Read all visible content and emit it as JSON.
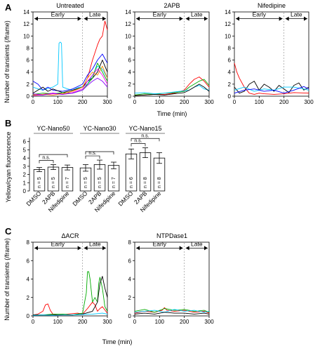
{
  "panels": {
    "A": {
      "label": "A",
      "ylabel": "Number of transients (/frame)",
      "xlabel": "Time (min)",
      "early_label": "Early",
      "late_label": "Late"
    },
    "B": {
      "label": "B",
      "ylabel": "Yellow/cyan fluorescence",
      "ns_label": "n.s."
    },
    "C": {
      "label": "C",
      "ylabel": "Number of transients (/frame)",
      "xlabel": "Time (min)",
      "early_label": "Early",
      "late_label": "Late"
    }
  },
  "chart_data": [
    {
      "id": "A-untreated",
      "type": "line",
      "title": "Untreated",
      "xlim": [
        0,
        300
      ],
      "ylim": [
        0,
        14
      ],
      "xticks": [
        0,
        100,
        200,
        300
      ],
      "yticks": [
        0,
        2,
        4,
        6,
        8,
        10,
        12,
        14
      ],
      "series": [
        {
          "color": "#00c8ff",
          "x": [
            0,
            20,
            40,
            60,
            80,
            100,
            105,
            110,
            115,
            120,
            140,
            160,
            180,
            200,
            220,
            240,
            260,
            280,
            300
          ],
          "y": [
            1.5,
            1.2,
            1.0,
            1.3,
            1.5,
            2.0,
            8.8,
            9.0,
            8.8,
            1.5,
            1.2,
            1.0,
            1.4,
            1.6,
            2.0,
            3.5,
            5.0,
            4.5,
            3.0
          ]
        },
        {
          "color": "#ff0000",
          "x": [
            0,
            40,
            80,
            120,
            160,
            200,
            220,
            240,
            260,
            270,
            280,
            290,
            300
          ],
          "y": [
            0.2,
            0.3,
            0.5,
            0.4,
            0.8,
            1.5,
            3.0,
            6.0,
            8.5,
            9.5,
            10.0,
            12.5,
            11.0
          ]
        },
        {
          "color": "#0000ff",
          "x": [
            0,
            20,
            40,
            60,
            80,
            120,
            160,
            200,
            220,
            240,
            260,
            280,
            300
          ],
          "y": [
            2.5,
            2.0,
            1.0,
            1.5,
            1.0,
            0.8,
            1.2,
            2.0,
            3.5,
            4.5,
            6.0,
            7.0,
            5.5
          ]
        },
        {
          "color": "#000000",
          "x": [
            0,
            40,
            60,
            80,
            120,
            160,
            200,
            220,
            240,
            260,
            280,
            300
          ],
          "y": [
            0.5,
            1.5,
            0.8,
            1.2,
            0.6,
            1.0,
            1.5,
            2.5,
            3.0,
            4.0,
            6.0,
            4.0
          ]
        },
        {
          "color": "#00aa00",
          "x": [
            0,
            40,
            80,
            120,
            160,
            200,
            220,
            240,
            260,
            280,
            300
          ],
          "y": [
            0.3,
            0.5,
            0.4,
            0.6,
            0.5,
            1.0,
            2.0,
            3.0,
            5.5,
            4.0,
            2.5
          ]
        },
        {
          "color": "#ff00ff",
          "x": [
            0,
            40,
            80,
            120,
            160,
            200,
            220,
            240,
            260,
            280,
            300
          ],
          "y": [
            0.1,
            0.2,
            0.4,
            0.3,
            0.6,
            1.2,
            2.5,
            3.5,
            4.5,
            3.5,
            2.0
          ]
        },
        {
          "color": "#ff8800",
          "x": [
            0,
            40,
            80,
            120,
            160,
            200,
            220,
            240,
            260,
            280,
            300
          ],
          "y": [
            0.2,
            0.3,
            0.2,
            0.4,
            0.8,
            1.5,
            3.0,
            4.0,
            3.5,
            5.0,
            3.0
          ]
        },
        {
          "color": "#8800ff",
          "x": [
            0,
            40,
            80,
            120,
            160,
            200,
            220,
            240,
            260,
            280,
            300
          ],
          "y": [
            0.4,
            0.2,
            0.5,
            0.3,
            0.5,
            1.0,
            1.8,
            2.5,
            3.0,
            2.5,
            1.5
          ]
        }
      ]
    },
    {
      "id": "A-2apb",
      "type": "line",
      "title": "2APB",
      "xlim": [
        0,
        300
      ],
      "ylim": [
        0,
        14
      ],
      "xticks": [
        0,
        100,
        200,
        300
      ],
      "yticks": [
        0,
        2,
        4,
        6,
        8,
        10,
        12,
        14
      ],
      "series": [
        {
          "color": "#ff0000",
          "x": [
            0,
            40,
            80,
            120,
            160,
            200,
            220,
            240,
            260,
            280,
            300
          ],
          "y": [
            0.1,
            0.2,
            0.3,
            0.3,
            0.5,
            1.0,
            2.0,
            2.8,
            3.2,
            2.5,
            1.5
          ]
        },
        {
          "color": "#00aa00",
          "x": [
            0,
            40,
            80,
            120,
            160,
            200,
            220,
            240,
            260,
            280,
            300
          ],
          "y": [
            0.2,
            0.4,
            0.3,
            0.5,
            0.6,
            0.8,
            1.5,
            2.0,
            2.5,
            2.8,
            1.8
          ]
        },
        {
          "color": "#00c8ff",
          "x": [
            0,
            40,
            80,
            120,
            160,
            200,
            220,
            240,
            260,
            280,
            300
          ],
          "y": [
            0.5,
            0.6,
            0.4,
            0.5,
            0.7,
            0.9,
            1.0,
            1.5,
            1.8,
            1.2,
            1.0
          ]
        },
        {
          "color": "#000000",
          "x": [
            0,
            40,
            80,
            120,
            160,
            200,
            220,
            240,
            260,
            280,
            300
          ],
          "y": [
            0.1,
            0.2,
            0.3,
            0.2,
            0.4,
            0.6,
            1.0,
            1.5,
            2.0,
            1.5,
            0.8
          ]
        }
      ]
    },
    {
      "id": "A-nifedipine",
      "type": "line",
      "title": "Nifedipine",
      "xlim": [
        0,
        300
      ],
      "ylim": [
        0,
        14
      ],
      "xticks": [
        0,
        100,
        200,
        300
      ],
      "yticks": [
        0,
        2,
        4,
        6,
        8,
        10,
        12,
        14
      ],
      "series": [
        {
          "color": "#ff0000",
          "x": [
            0,
            10,
            20,
            40,
            60,
            80,
            100,
            120,
            160,
            200,
            240,
            300
          ],
          "y": [
            5.5,
            4.0,
            3.0,
            1.5,
            0.5,
            0.3,
            0.5,
            0.4,
            0.3,
            0.4,
            0.6,
            0.5
          ]
        },
        {
          "color": "#000000",
          "x": [
            0,
            20,
            40,
            60,
            80,
            100,
            120,
            140,
            160,
            180,
            200,
            220,
            240,
            260,
            280,
            300
          ],
          "y": [
            1.5,
            0.5,
            0.8,
            2.0,
            2.5,
            1.0,
            2.0,
            1.5,
            0.8,
            1.8,
            1.2,
            0.6,
            1.8,
            2.2,
            1.0,
            1.5
          ]
        },
        {
          "color": "#00c8ff",
          "x": [
            0,
            40,
            80,
            120,
            160,
            200,
            240,
            280,
            300
          ],
          "y": [
            1.0,
            1.5,
            0.8,
            1.2,
            1.0,
            1.5,
            1.5,
            1.2,
            1.0
          ]
        },
        {
          "color": "#0000ff",
          "x": [
            0,
            40,
            80,
            120,
            160,
            200,
            240,
            280,
            300
          ],
          "y": [
            0.5,
            1.0,
            1.2,
            0.8,
            1.0,
            0.5,
            1.0,
            1.6,
            1.2
          ]
        }
      ]
    },
    {
      "id": "B-nano50",
      "type": "bar",
      "title": "YC-Nano50",
      "categories": [
        "DMSO",
        "2APB",
        "Nifedipine"
      ],
      "values": [
        2.6,
        2.9,
        2.85
      ],
      "errors": [
        0.25,
        0.3,
        0.3
      ],
      "n_labels": [
        "n = 5",
        "n = 5",
        "n = 7"
      ],
      "ylim": [
        0,
        7
      ],
      "yticks": [
        0,
        1,
        2,
        3,
        4,
        5,
        6,
        7
      ],
      "sig": [
        {
          "from": 0,
          "to": 1,
          "label": "n.s."
        },
        {
          "from": 0,
          "to": 2,
          "label": ""
        }
      ]
    },
    {
      "id": "B-nano30",
      "type": "bar",
      "title": "YC-Nano30",
      "categories": [
        "DMSO",
        "2APB",
        "Nifedipine"
      ],
      "values": [
        2.8,
        3.2,
        3.1
      ],
      "errors": [
        0.4,
        0.55,
        0.4
      ],
      "n_labels": [
        "n = 5",
        "n = 5",
        "n = 7"
      ],
      "ylim": [
        0,
        7
      ],
      "yticks": [
        0,
        1,
        2,
        3,
        4,
        5,
        6,
        7
      ],
      "sig": [
        {
          "from": 0,
          "to": 1,
          "label": "n.s."
        },
        {
          "from": 0,
          "to": 2,
          "label": ""
        }
      ]
    },
    {
      "id": "B-nano15",
      "type": "bar",
      "title": "YC-Nano15",
      "categories": [
        "DMSO",
        "2APB",
        "Nifedipine"
      ],
      "values": [
        4.5,
        4.65,
        4.0
      ],
      "errors": [
        0.6,
        0.6,
        0.65
      ],
      "n_labels": [
        "n = 6",
        "n = 8",
        "n = 8"
      ],
      "ylim": [
        0,
        7
      ],
      "yticks": [
        0,
        1,
        2,
        3,
        4,
        5,
        6,
        7
      ],
      "sig": [
        {
          "from": 0,
          "to": 1,
          "label": "n.s."
        },
        {
          "from": 0,
          "to": 2,
          "label": "n.s."
        }
      ]
    },
    {
      "id": "C-dacr",
      "type": "line",
      "title": "ΔACR",
      "xlim": [
        0,
        300
      ],
      "ylim": [
        0,
        8
      ],
      "xticks": [
        0,
        100,
        200,
        300
      ],
      "yticks": [
        0,
        2,
        4,
        6,
        8
      ],
      "series": [
        {
          "color": "#ff0000",
          "x": [
            0,
            20,
            40,
            50,
            60,
            70,
            80,
            100,
            140,
            180,
            200,
            220,
            240,
            250,
            260,
            270,
            280,
            300
          ],
          "y": [
            0.1,
            0.2,
            0.5,
            1.2,
            1.3,
            0.6,
            0.2,
            0.1,
            0.2,
            0.3,
            0.2,
            0.8,
            1.5,
            1.2,
            0.5,
            0.8,
            1.0,
            0.3
          ]
        },
        {
          "color": "#00aa00",
          "x": [
            0,
            40,
            80,
            120,
            160,
            200,
            215,
            220,
            225,
            230,
            240,
            250,
            260,
            265,
            270,
            280,
            290,
            300
          ],
          "y": [
            0.1,
            0.1,
            0.2,
            0.2,
            0.1,
            0.3,
            2.5,
            4.8,
            4.8,
            4.0,
            1.5,
            2.0,
            1.5,
            3.5,
            4.2,
            3.0,
            1.0,
            0.5
          ]
        },
        {
          "color": "#000000",
          "x": [
            0,
            40,
            80,
            120,
            160,
            200,
            240,
            260,
            270,
            280,
            290,
            300
          ],
          "y": [
            0.1,
            0.1,
            0.1,
            0.1,
            0.1,
            0.2,
            0.5,
            1.5,
            3.5,
            4.3,
            3.0,
            2.0
          ]
        },
        {
          "color": "#00c8ff",
          "x": [
            0,
            40,
            80,
            120,
            160,
            200,
            240,
            280,
            300
          ],
          "y": [
            0.05,
            0.1,
            0.05,
            0.1,
            0.1,
            0.15,
            0.2,
            0.3,
            0.2
          ]
        }
      ]
    },
    {
      "id": "C-ntpdase1",
      "type": "line",
      "title": "NTPDase1",
      "xlim": [
        0,
        300
      ],
      "ylim": [
        0,
        8
      ],
      "xticks": [
        0,
        100,
        200,
        300
      ],
      "yticks": [
        0,
        2,
        4,
        6,
        8
      ],
      "series": [
        {
          "color": "#ff0000",
          "x": [
            0,
            40,
            80,
            110,
            120,
            130,
            160,
            200,
            240,
            280,
            300
          ],
          "y": [
            0.3,
            0.5,
            0.4,
            0.6,
            0.9,
            0.6,
            0.5,
            0.6,
            0.4,
            0.5,
            0.3
          ]
        },
        {
          "color": "#00aa00",
          "x": [
            0,
            40,
            80,
            120,
            160,
            200,
            240,
            280,
            300
          ],
          "y": [
            0.5,
            0.7,
            0.4,
            0.8,
            0.6,
            0.7,
            0.5,
            0.6,
            0.4
          ]
        },
        {
          "color": "#00c8ff",
          "x": [
            0,
            40,
            80,
            120,
            160,
            200,
            240,
            280,
            300
          ],
          "y": [
            0.4,
            0.5,
            0.6,
            0.4,
            0.7,
            0.5,
            0.6,
            0.4,
            0.5
          ]
        },
        {
          "color": "#000000",
          "x": [
            0,
            40,
            80,
            120,
            160,
            200,
            240,
            280,
            300
          ],
          "y": [
            0.2,
            0.3,
            0.2,
            0.4,
            0.3,
            0.3,
            0.2,
            0.3,
            0.2
          ]
        }
      ]
    }
  ]
}
